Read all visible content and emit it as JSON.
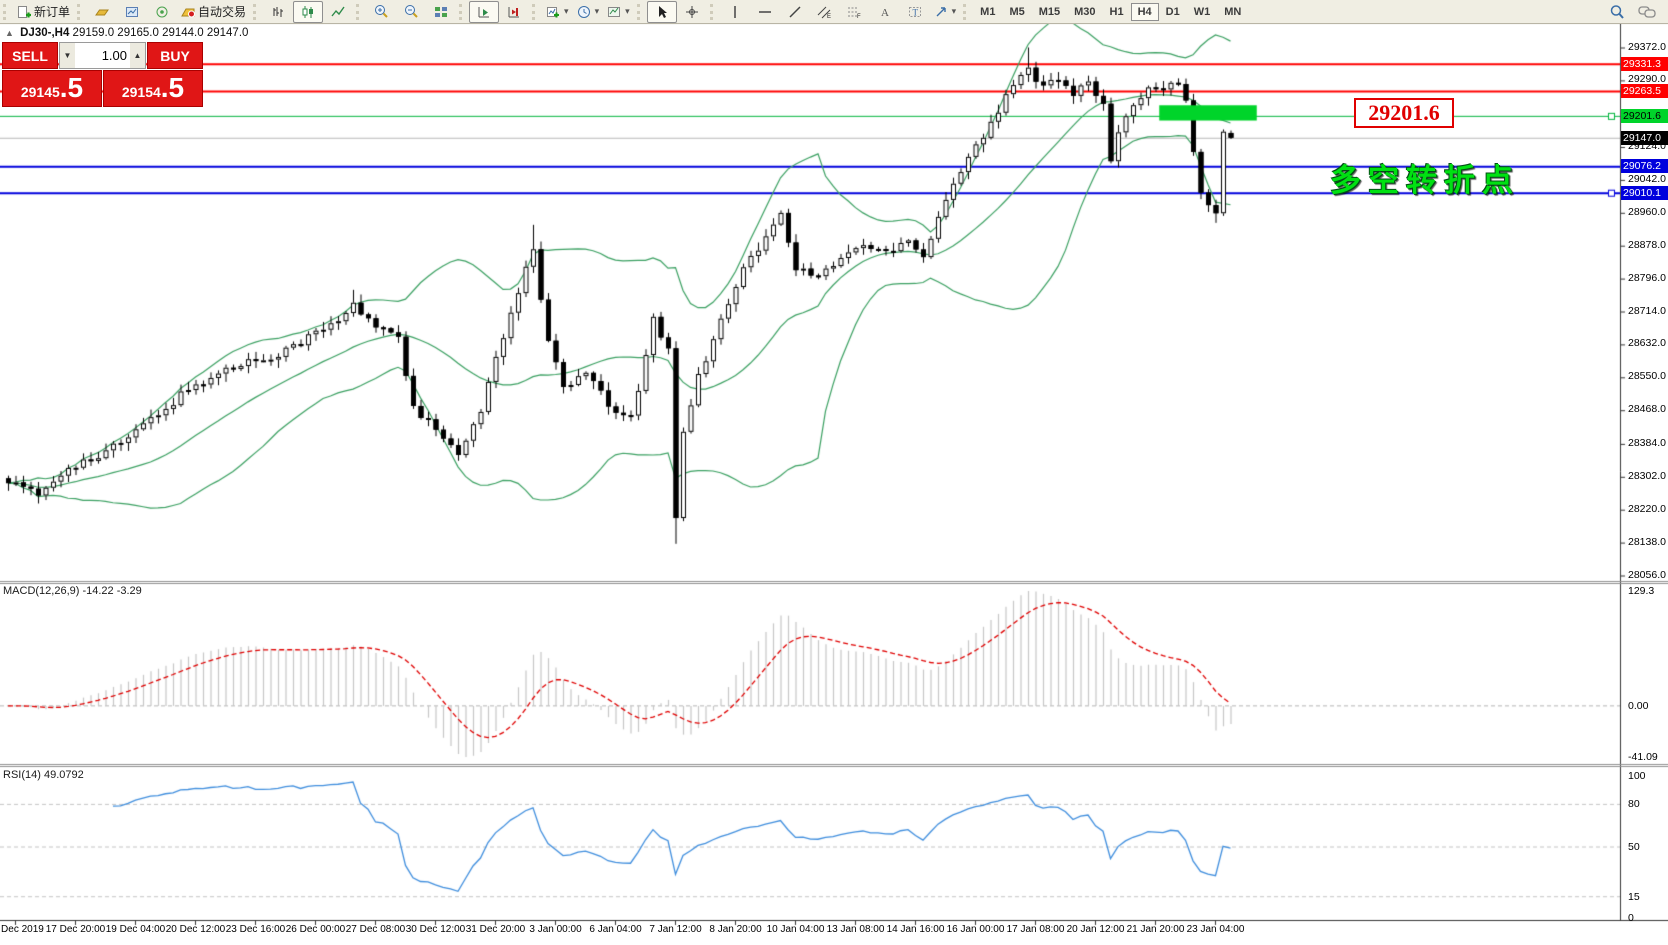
{
  "toolbar": {
    "new_order_label": "新订单",
    "auto_trading_label": "自动交易",
    "timeframes": [
      "M1",
      "M5",
      "M15",
      "M30",
      "H1",
      "H4",
      "D1",
      "W1",
      "MN"
    ],
    "active_timeframe": "H4",
    "icon_names": [
      "new-order-icon",
      "gold-icon",
      "market-window-icon",
      "signal-icon",
      "auto-trading-icon",
      "bar-chart-icon",
      "candlestick-chart-icon",
      "line-chart-icon",
      "zoom-in-icon",
      "zoom-out-icon",
      "tile-windows-icon",
      "auto-scroll-icon",
      "chart-shift-icon",
      "add-indicator-icon",
      "periods-icon",
      "templates-icon",
      "cursor-icon",
      "crosshair-icon",
      "vertical-line-icon",
      "horizontal-line-icon",
      "trendline-icon",
      "equidistant-channel-icon",
      "fibonacci-icon",
      "text-icon",
      "label-icon",
      "arrows-icon",
      "search-icon",
      "chat-icon"
    ]
  },
  "chart_header": {
    "marker": "▲",
    "title": "DJ30-,H4",
    "ohlc": "29159.0 29165.0 29144.0 29147.0"
  },
  "one_click": {
    "sell_label": "SELL",
    "buy_label": "BUY",
    "volume": "1.00",
    "sell_price": "29145",
    "sell_price_frac": ".5",
    "buy_price": "29154",
    "buy_price_frac": ".5",
    "panel_color": "#e01616"
  },
  "annotations": {
    "price_callout": "29201.6",
    "turning_point_text": "多空转折点",
    "callout_color": "#e00000",
    "turning_color": "#00e112"
  },
  "price_axis": {
    "ticks": [
      "29372.0",
      "29290.0",
      "29124.0",
      "29042.0",
      "28960.0",
      "28878.0",
      "28796.0",
      "28714.0",
      "28632.0",
      "28550.0",
      "28468.0",
      "28384.0",
      "28302.0",
      "28220.0",
      "28138.0",
      "28056.0"
    ],
    "badges": [
      {
        "label": "29331.3",
        "bg": "#ff0000",
        "fg": "#ffffff"
      },
      {
        "label": "29263.5",
        "bg": "#ff0000",
        "fg": "#ffffff"
      },
      {
        "label": "29201.6",
        "bg": "#00d42a",
        "fg": "#000000"
      },
      {
        "label": "29147.0",
        "bg": "#000000",
        "fg": "#ffffff"
      },
      {
        "label": "29076.2",
        "bg": "#0000dd",
        "fg": "#ffffff"
      },
      {
        "label": "29010.1",
        "bg": "#0000dd",
        "fg": "#ffffff"
      }
    ]
  },
  "macd_panel": {
    "label": "MACD(12,26,9) -14.22 -3.29",
    "axis_labels": [
      "129.3",
      "0.00",
      "-41.09"
    ]
  },
  "rsi_panel": {
    "label": "RSI(14) 49.0792",
    "axis_labels": [
      "100",
      "80",
      "50",
      "15",
      "0"
    ]
  },
  "time_axis": {
    "labels": [
      "16 Dec 2019",
      "17 Dec 20:00",
      "19 Dec 04:00",
      "20 Dec 12:00",
      "23 Dec 16:00",
      "26 Dec 00:00",
      "27 Dec 08:00",
      "30 Dec 12:00",
      "31 Dec 20:00",
      "3 Jan 00:00",
      "6 Jan 04:00",
      "7 Jan 12:00",
      "8 Jan 20:00",
      "10 Jan 04:00",
      "13 Jan 08:00",
      "14 Jan 16:00",
      "16 Jan 00:00",
      "17 Jan 08:00",
      "20 Jan 12:00",
      "21 Jan 20:00",
      "23 Jan 04:00"
    ]
  },
  "chart_data": {
    "type": "candlestick",
    "symbol": "DJ30-",
    "timeframe": "H4",
    "bars": 164,
    "bars_per_time_label": 8,
    "price_axis_range": {
      "top_price": 29372.0,
      "top_y": 47.5,
      "bottom_price": 28056.0,
      "bottom_y": 575.5
    },
    "close_anchors": [
      [
        0,
        28290
      ],
      [
        4,
        28255
      ],
      [
        8,
        28330
      ],
      [
        12,
        28350
      ],
      [
        16,
        28400
      ],
      [
        20,
        28460
      ],
      [
        24,
        28520
      ],
      [
        28,
        28560
      ],
      [
        32,
        28590
      ],
      [
        36,
        28610
      ],
      [
        40,
        28650
      ],
      [
        44,
        28690
      ],
      [
        46,
        28730
      ],
      [
        48,
        28690
      ],
      [
        52,
        28655
      ],
      [
        54,
        28470
      ],
      [
        57,
        28420
      ],
      [
        60,
        28350
      ],
      [
        63,
        28470
      ],
      [
        66,
        28650
      ],
      [
        69,
        28830
      ],
      [
        70,
        28865
      ],
      [
        72,
        28640
      ],
      [
        74,
        28520
      ],
      [
        77,
        28560
      ],
      [
        80,
        28480
      ],
      [
        83,
        28445
      ],
      [
        86,
        28690
      ],
      [
        88,
        28620
      ],
      [
        89,
        28200
      ],
      [
        90,
        28420
      ],
      [
        92,
        28550
      ],
      [
        95,
        28700
      ],
      [
        98,
        28820
      ],
      [
        101,
        28900
      ],
      [
        103,
        28955
      ],
      [
        105,
        28820
      ],
      [
        108,
        28800
      ],
      [
        111,
        28850
      ],
      [
        114,
        28880
      ],
      [
        117,
        28860
      ],
      [
        120,
        28900
      ],
      [
        122,
        28850
      ],
      [
        125,
        29000
      ],
      [
        128,
        29100
      ],
      [
        131,
        29180
      ],
      [
        134,
        29280
      ],
      [
        136,
        29315
      ],
      [
        138,
        29280
      ],
      [
        140,
        29300
      ],
      [
        142,
        29260
      ],
      [
        144,
        29280
      ],
      [
        146,
        29230
      ],
      [
        147,
        29090
      ],
      [
        148,
        29150
      ],
      [
        150,
        29230
      ],
      [
        152,
        29280
      ],
      [
        154,
        29270
      ],
      [
        156,
        29290
      ],
      [
        157,
        29250
      ],
      [
        158,
        29120
      ],
      [
        159,
        29000
      ],
      [
        160,
        28990
      ],
      [
        161,
        28960
      ],
      [
        162,
        29159
      ],
      [
        163,
        29147
      ]
    ],
    "wick_overrides": {
      "46": {
        "high": 28768
      },
      "70": {
        "high": 28930
      },
      "89": {
        "low": 28135
      },
      "136": {
        "high": 29372
      },
      "161": {
        "low": 28935
      },
      "163": {
        "open": 29159,
        "high": 29165,
        "low": 29144,
        "close": 29147
      }
    },
    "noise_amplitude": 22,
    "indicators": {
      "bollinger": {
        "period": 20,
        "deviation": 2,
        "color": "#3aa061"
      },
      "macd": {
        "fast": 12,
        "slow": 26,
        "signal_period": 9,
        "value": -14.22,
        "signal_value": -3.29,
        "axis_max": 129.3,
        "axis_min": -41.09,
        "histogram_color": "#c6c6c6",
        "signal_color": "#e00000"
      },
      "rsi": {
        "period": 14,
        "value": 49.0792,
        "levels": [
          80,
          50,
          15
        ],
        "color": "#3f8ede"
      }
    },
    "horizontal_lines": [
      {
        "price": 29331.3,
        "color": "#ff0000",
        "width": 2,
        "marker": false
      },
      {
        "price": 29263.5,
        "color": "#ff0000",
        "width": 2,
        "marker": false
      },
      {
        "price": 29201.6,
        "color": "#00b43c",
        "width": 1,
        "marker": true
      },
      {
        "price": 29147.0,
        "color": "#b8b8b8",
        "width": 1,
        "marker": false
      },
      {
        "price": 29076.2,
        "color": "#0000dd",
        "width": 2,
        "marker": false
      },
      {
        "price": 29010.1,
        "color": "#0000dd",
        "width": 2,
        "marker": true
      }
    ],
    "current_price": 29147.0,
    "highlight_rect": {
      "bar_start": 153.5,
      "bar_end": 166.5,
      "price_top": 29228,
      "price_bottom": 29190,
      "color": "#00d42a"
    }
  }
}
